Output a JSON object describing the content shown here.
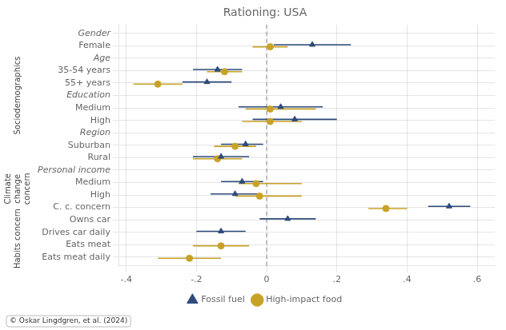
{
  "chart_data": {
    "type": "scatter",
    "title": "Rationing: USA",
    "categories": [
      "Gender",
      "Female",
      "Age",
      "35-54 years",
      "55+ years",
      "Education",
      "Medium",
      "High",
      "Region",
      "Suburban",
      "Rural",
      "Personal income",
      "Medium",
      "High",
      "C. c. concern",
      "Owns car",
      "Drives car daily",
      "Eats meat",
      "Eats meat daily"
    ],
    "series": [
      {
        "name": "Fossil fuel",
        "color": "#2d4a7a",
        "marker": "triangle",
        "values": [
          null,
          0.13,
          null,
          -0.14,
          -0.17,
          null,
          0.04,
          0.08,
          null,
          -0.06,
          -0.13,
          null,
          -0.07,
          -0.09,
          0.52,
          0.06,
          -0.13,
          null,
          null
        ],
        "lo": [
          null,
          0.02,
          null,
          -0.21,
          -0.24,
          null,
          -0.08,
          -0.04,
          null,
          -0.13,
          -0.21,
          null,
          -0.13,
          -0.16,
          0.46,
          -0.02,
          -0.2,
          null,
          null
        ],
        "hi": [
          null,
          0.24,
          null,
          -0.07,
          -0.1,
          null,
          0.16,
          0.2,
          null,
          -0.01,
          -0.05,
          null,
          -0.01,
          -0.02,
          0.58,
          0.14,
          -0.06,
          null,
          null
        ]
      },
      {
        "name": "High-impact food",
        "color": "#c8a227",
        "marker": "circle",
        "values": [
          null,
          0.01,
          null,
          -0.12,
          -0.31,
          null,
          0.01,
          0.01,
          null,
          -0.09,
          -0.14,
          null,
          -0.03,
          -0.02,
          0.34,
          null,
          null,
          -0.13,
          -0.22
        ],
        "lo": [
          null,
          -0.04,
          null,
          -0.17,
          -0.38,
          null,
          -0.06,
          -0.07,
          null,
          -0.15,
          -0.21,
          null,
          -0.08,
          -0.09,
          0.29,
          null,
          null,
          -0.21,
          -0.31
        ],
        "hi": [
          null,
          0.06,
          null,
          -0.07,
          -0.24,
          null,
          0.14,
          0.1,
          null,
          -0.03,
          -0.07,
          null,
          0.1,
          0.1,
          0.4,
          null,
          null,
          -0.05,
          -0.13
        ]
      }
    ],
    "xlim": [
      -0.42,
      0.65
    ],
    "xticks": [
      {
        "value": -0.4,
        "label": "-.4"
      },
      {
        "value": -0.2,
        "label": "-.2"
      },
      0,
      {
        "value": 0.2,
        "label": ".2"
      },
      {
        "value": 0.4,
        "label": ".4"
      },
      {
        "value": 0.6,
        "label": ".6"
      }
    ],
    "reference_lines": [
      {
        "x": 0,
        "line_style": "dashed"
      }
    ],
    "groups": [
      {
        "text": "Sociodemographics",
        "first": 0,
        "last": 10
      },
      {
        "text": "Climate\nchange\nconcern",
        "first": 11,
        "last": 14
      },
      {
        "text": "Habits concern",
        "first": 15,
        "last": 18
      }
    ],
    "caption": "© Oskar Lingdgren, et al. (2024)",
    "grid": true,
    "legend": "bottom"
  }
}
